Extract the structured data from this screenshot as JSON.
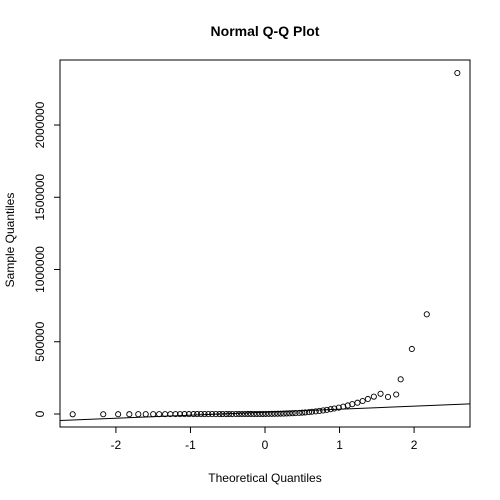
{
  "chart_data": {
    "type": "scatter",
    "title": "Normal Q-Q Plot",
    "xlabel": "Theoretical Quantiles",
    "ylabel": "Sample Quantiles",
    "xlim": [
      -2.75,
      2.75
    ],
    "ylim": [
      -90000,
      2450000
    ],
    "x_ticks": [
      -2,
      -1,
      0,
      1,
      2
    ],
    "x_tick_labels": [
      "-2",
      "-1",
      "0",
      "1",
      "2"
    ],
    "y_ticks": [
      0,
      500000,
      1000000,
      1500000,
      2000000
    ],
    "y_tick_labels": [
      "0",
      "500000",
      "1000000",
      "1500000",
      "2000000"
    ],
    "grid": false,
    "legend": "none",
    "marker": "open-circle",
    "series": [
      {
        "x": [
          -2.58,
          -2.17,
          -1.97,
          -1.82,
          -1.7,
          -1.6,
          -1.5,
          -1.42,
          -1.34,
          -1.27,
          -1.2,
          -1.14,
          -1.08,
          -1.02,
          -0.96,
          -0.91,
          -0.86,
          -0.81,
          -0.76,
          -0.71,
          -0.66,
          -0.61,
          -0.57,
          -0.52,
          -0.48,
          -0.44,
          -0.39,
          -0.35,
          -0.31,
          -0.27,
          -0.23,
          -0.19,
          -0.15,
          -0.11,
          -0.07,
          -0.03,
          0.01,
          0.05,
          0.09,
          0.13,
          0.17,
          0.21,
          0.25,
          0.29,
          0.33,
          0.37,
          0.41,
          0.46,
          0.5,
          0.54,
          0.59,
          0.63,
          0.68,
          0.73,
          0.78,
          0.83,
          0.88,
          0.93,
          0.99,
          1.05,
          1.11,
          1.17,
          1.24,
          1.31,
          1.38,
          1.46,
          1.55,
          1.65,
          1.76,
          1.82,
          1.97,
          2.17,
          2.58
        ],
        "y": [
          -2000,
          -1800,
          -1600,
          -1500,
          -1400,
          -1300,
          -1200,
          -1100,
          -1000,
          -950,
          -900,
          -850,
          -800,
          -750,
          -700,
          -650,
          -600,
          -550,
          -500,
          -450,
          -400,
          -350,
          -300,
          -250,
          -200,
          -150,
          -100,
          -50,
          0,
          50,
          100,
          200,
          300,
          400,
          500,
          600,
          700,
          900,
          1200,
          1500,
          1900,
          2400,
          3000,
          3700,
          4500,
          5400,
          6500,
          7800,
          9300,
          11000,
          13000,
          15500,
          18000,
          21000,
          24500,
          28500,
          33000,
          38000,
          44000,
          51000,
          59000,
          68000,
          78000,
          90000,
          104000,
          120000,
          140000,
          118000,
          135000,
          240000,
          450000,
          690000,
          2360000
        ]
      }
    ],
    "reference_line": {
      "x": [
        -2.75,
        2.75
      ],
      "y": [
        -45000,
        70000
      ]
    }
  }
}
